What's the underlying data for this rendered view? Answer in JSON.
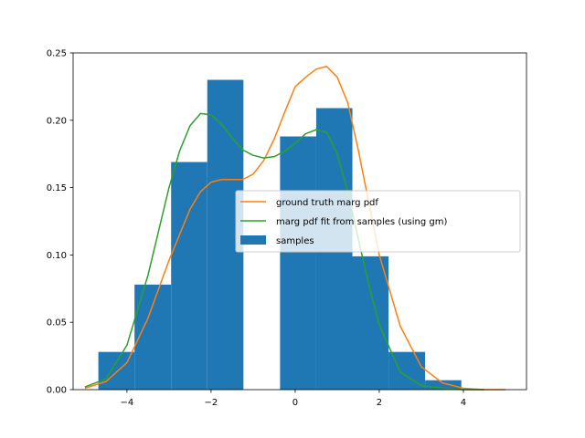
{
  "chart_data": {
    "type": "bar",
    "title": "",
    "xlabel": "",
    "ylabel": "",
    "xlim": [
      -5.28,
      5.5
    ],
    "ylim": [
      0,
      0.25
    ],
    "xticks": [
      -4,
      -2,
      0,
      2,
      4
    ],
    "yticks": [
      0.0,
      0.05,
      0.1,
      0.15,
      0.2,
      0.25
    ],
    "xtick_labels": [
      "−4",
      "−2",
      "0",
      "2",
      "4"
    ],
    "ytick_labels": [
      "0.00",
      "0.05",
      "0.10",
      "0.15",
      "0.20",
      "0.25"
    ],
    "histogram": {
      "name": "samples",
      "color": "#1f77b4",
      "bin_edges": [
        -4.68,
        -3.82,
        -2.95,
        -2.09,
        -1.23,
        -0.36,
        0.5,
        1.36,
        2.22,
        3.09,
        3.95
      ],
      "values": [
        0.028,
        0.078,
        0.169,
        0.23,
        0.0,
        0.188,
        0.209,
        0.099,
        0.028,
        0.007
      ]
    },
    "series": [
      {
        "name": "ground truth marg pdf",
        "color": "#ff7f0e",
        "x": [
          -5.0,
          -4.5,
          -4.0,
          -3.5,
          -3.0,
          -2.5,
          -2.25,
          -2.0,
          -1.75,
          -1.5,
          -1.25,
          -1.0,
          -0.75,
          -0.5,
          -0.25,
          0.0,
          0.25,
          0.5,
          0.75,
          1.0,
          1.25,
          1.5,
          1.75,
          2.0,
          2.5,
          3.0,
          3.5,
          4.0,
          4.5,
          5.0
        ],
        "y": [
          0.001,
          0.006,
          0.02,
          0.053,
          0.096,
          0.134,
          0.147,
          0.154,
          0.156,
          0.156,
          0.156,
          0.16,
          0.17,
          0.186,
          0.206,
          0.225,
          0.232,
          0.238,
          0.24,
          0.232,
          0.213,
          0.178,
          0.139,
          0.1,
          0.047,
          0.017,
          0.005,
          0.001,
          0.0,
          0.0
        ]
      },
      {
        "name": "marg pdf fit from samples (using gm)",
        "color": "#2ca02c",
        "x": [
          -5.0,
          -4.5,
          -4.0,
          -3.5,
          -3.0,
          -2.75,
          -2.5,
          -2.25,
          -2.0,
          -1.75,
          -1.5,
          -1.25,
          -1.0,
          -0.75,
          -0.5,
          -0.25,
          0.0,
          0.25,
          0.5,
          0.75,
          1.0,
          1.25,
          1.5,
          1.75,
          2.0,
          2.5,
          3.0,
          3.5,
          4.0,
          4.5
        ],
        "y": [
          0.002,
          0.008,
          0.033,
          0.085,
          0.15,
          0.177,
          0.196,
          0.205,
          0.204,
          0.197,
          0.187,
          0.178,
          0.174,
          0.172,
          0.173,
          0.177,
          0.183,
          0.19,
          0.193,
          0.191,
          0.175,
          0.147,
          0.112,
          0.078,
          0.048,
          0.013,
          0.003,
          0.001,
          0.0,
          0.0
        ]
      }
    ],
    "legend": {
      "placement": "center-right",
      "entries": [
        {
          "label": "ground truth marg pdf",
          "color": "#ff7f0e",
          "kind": "line"
        },
        {
          "label": "marg pdf fit from samples (using gm)",
          "color": "#2ca02c",
          "kind": "line"
        },
        {
          "label": "samples",
          "color": "#1f77b4",
          "kind": "patch"
        }
      ]
    },
    "grid": false
  }
}
